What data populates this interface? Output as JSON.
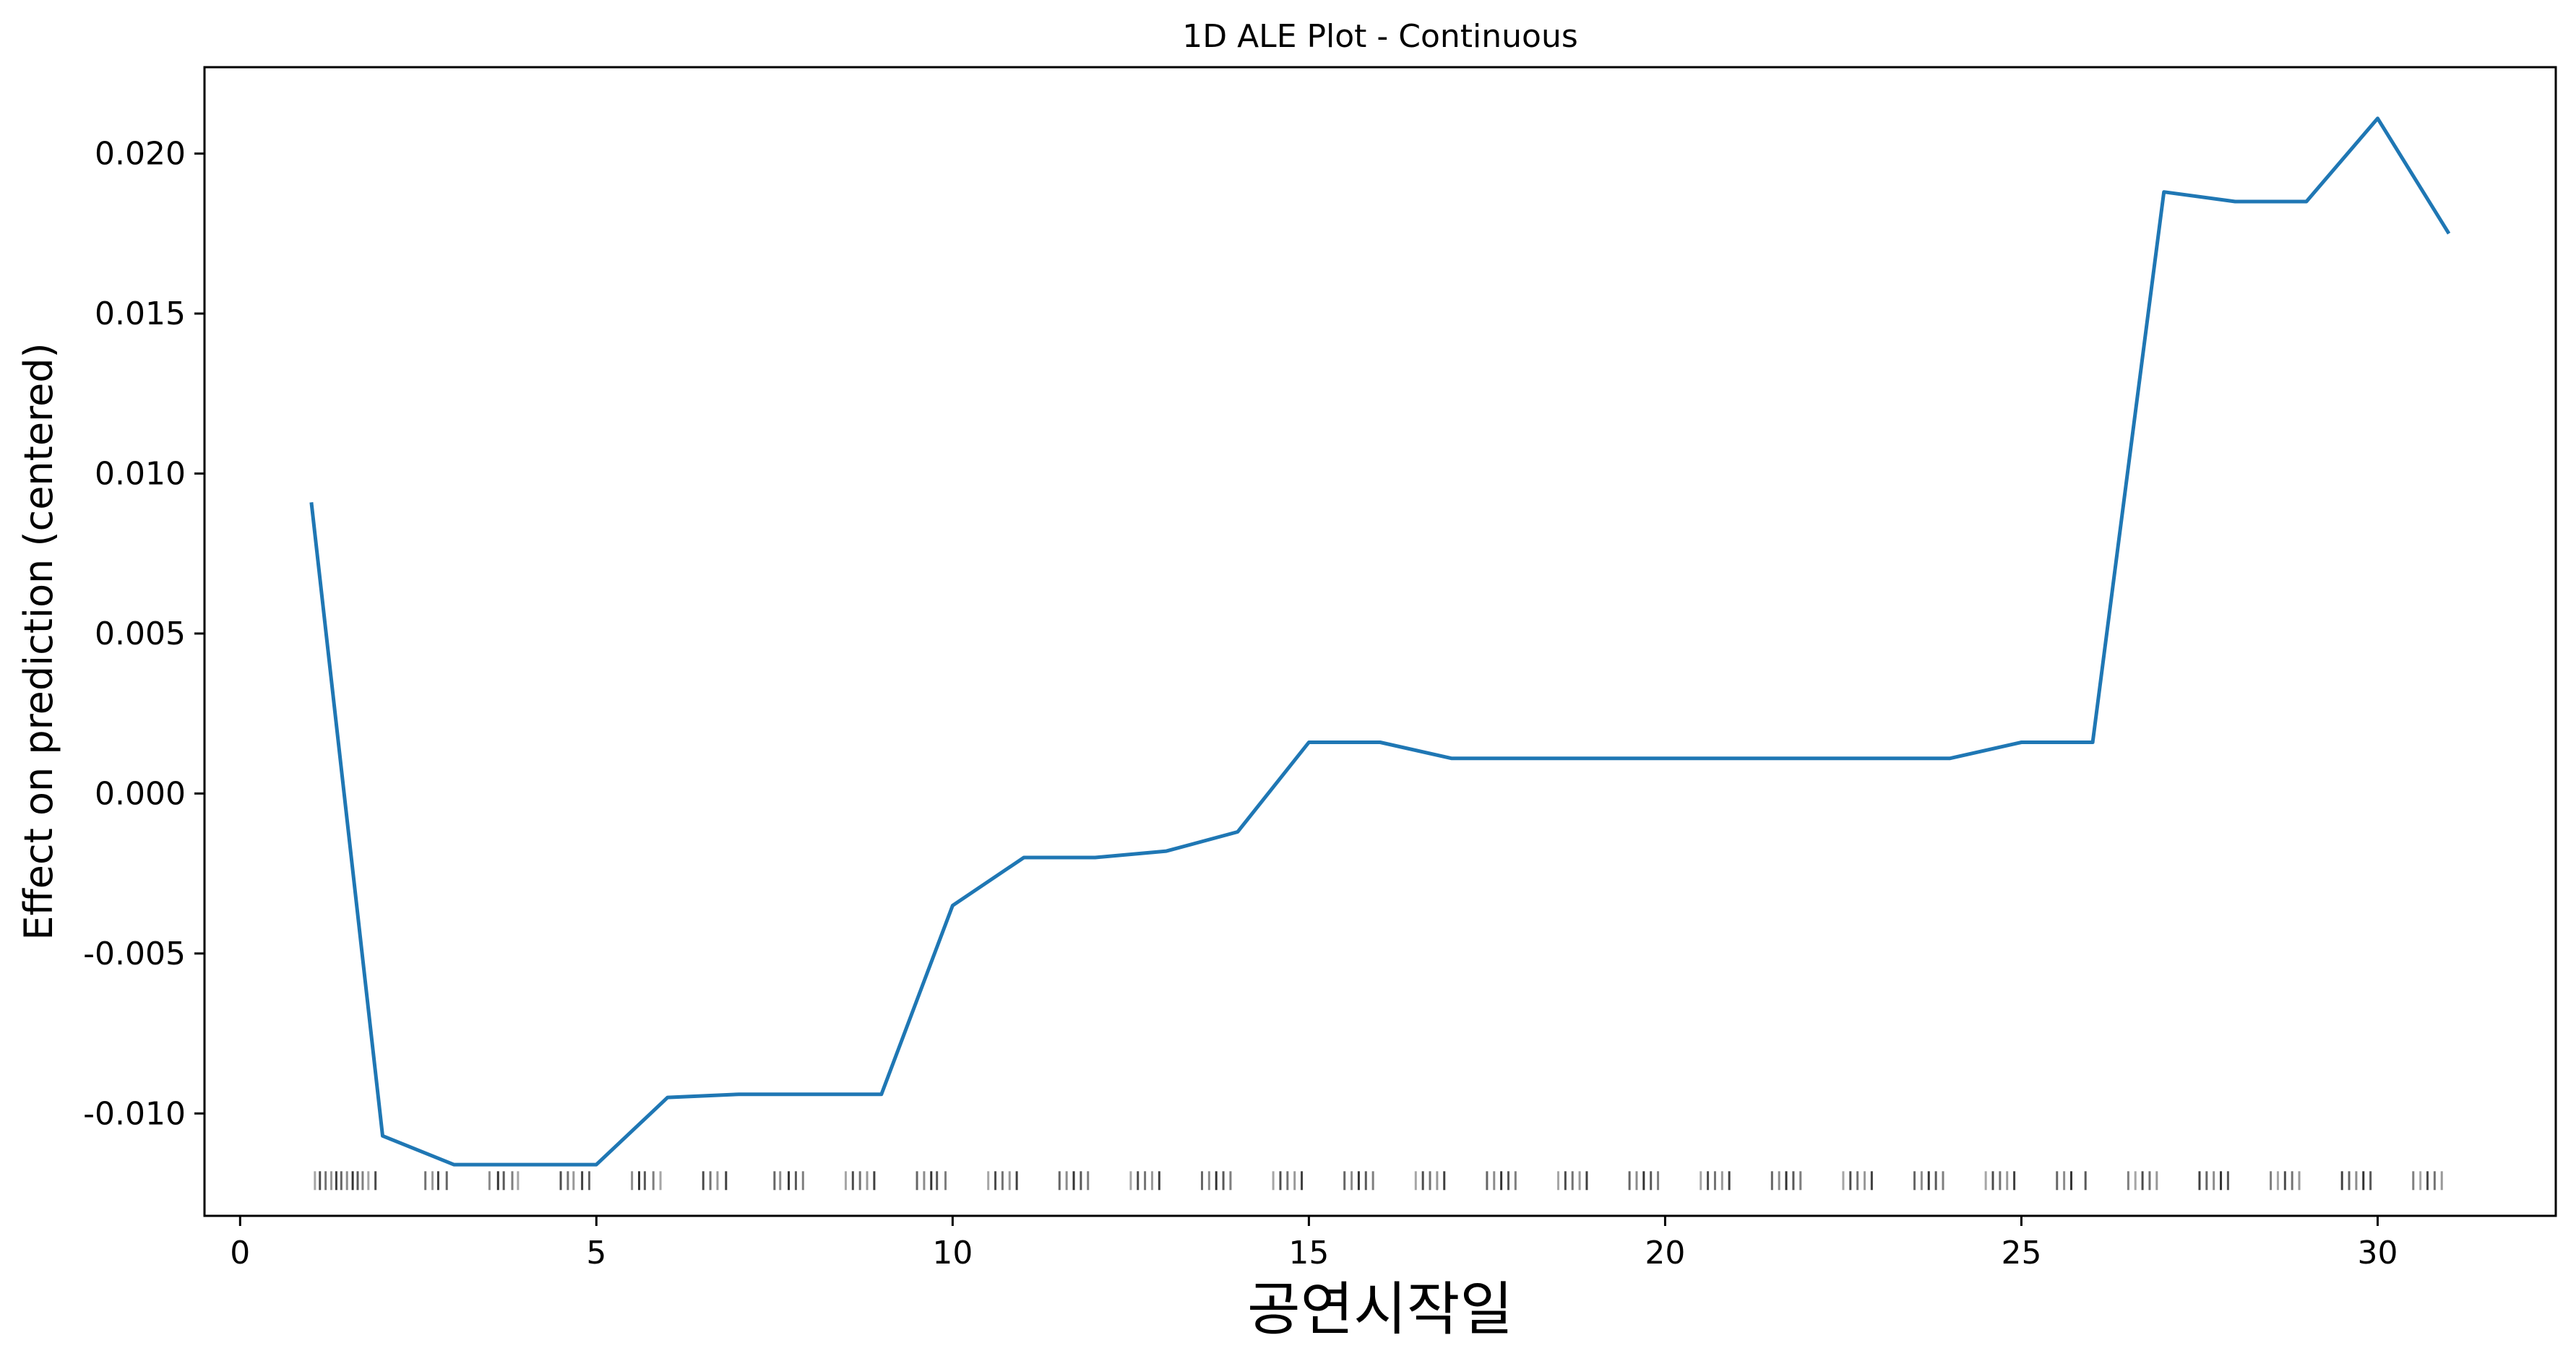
{
  "chart_data": {
    "type": "line",
    "title": "1D ALE Plot - Continuous",
    "xlabel": "공연시작일",
    "ylabel": "Effect on prediction (centered)",
    "xlim": [
      -0.5,
      32.5
    ],
    "ylim": [
      -0.0132,
      0.0227
    ],
    "x_ticks": [
      0,
      5,
      10,
      15,
      20,
      25,
      30
    ],
    "x_tick_labels": [
      "0",
      "5",
      "10",
      "15",
      "20",
      "25",
      "30"
    ],
    "y_ticks": [
      -0.01,
      -0.005,
      0.0,
      0.005,
      0.01,
      0.015,
      0.02
    ],
    "y_tick_labels": [
      "-0.010",
      "-0.005",
      "0.000",
      "0.005",
      "0.010",
      "0.015",
      "0.020"
    ],
    "grid": false,
    "line_color": "#1f77b4",
    "series": [
      {
        "x": [
          1,
          2,
          3,
          4,
          5,
          6,
          7,
          8,
          9,
          10,
          11,
          12,
          13,
          14,
          15,
          16,
          17,
          18,
          19,
          20,
          21,
          22,
          23,
          24,
          25,
          26,
          27,
          28,
          29,
          30,
          31
        ],
        "y": [
          0.0091,
          -0.0107,
          -0.0116,
          -0.0116,
          -0.0116,
          -0.0095,
          -0.0094,
          -0.0094,
          -0.0094,
          -0.0035,
          -0.002,
          -0.002,
          -0.0018,
          -0.0012,
          0.0016,
          0.0016,
          0.0011,
          0.0011,
          0.0011,
          0.0011,
          0.0011,
          0.0011,
          0.0011,
          0.0011,
          0.0016,
          0.0016,
          0.0188,
          0.0185,
          0.0185,
          0.0211,
          0.0175
        ]
      }
    ],
    "rug": {
      "y": -0.0121,
      "x": [
        1.05,
        1.12,
        1.2,
        1.28,
        1.35,
        1.42,
        1.5,
        1.58,
        1.65,
        1.72,
        1.8,
        1.9,
        2.6,
        2.7,
        2.78,
        2.9,
        3.5,
        3.62,
        3.7,
        3.82,
        3.9,
        4.5,
        4.6,
        4.68,
        4.8,
        4.9,
        5.5,
        5.6,
        5.68,
        5.8,
        5.9,
        6.5,
        6.6,
        6.7,
        6.82,
        7.5,
        7.58,
        7.7,
        7.8,
        7.9,
        8.5,
        8.6,
        8.7,
        8.8,
        8.9,
        9.5,
        9.6,
        9.7,
        9.78,
        9.9,
        10.5,
        10.6,
        10.7,
        10.8,
        10.9,
        11.5,
        11.6,
        11.7,
        11.8,
        11.9,
        12.5,
        12.6,
        12.7,
        12.8,
        12.9,
        13.5,
        13.6,
        13.7,
        13.8,
        13.9,
        14.5,
        14.6,
        14.7,
        14.8,
        14.9,
        15.5,
        15.6,
        15.7,
        15.8,
        15.9,
        16.5,
        16.6,
        16.7,
        16.8,
        16.9,
        17.5,
        17.6,
        17.7,
        17.8,
        17.9,
        18.5,
        18.6,
        18.7,
        18.8,
        18.9,
        19.5,
        19.6,
        19.7,
        19.8,
        19.9,
        20.5,
        20.6,
        20.7,
        20.8,
        20.9,
        21.5,
        21.6,
        21.7,
        21.8,
        21.9,
        22.5,
        22.6,
        22.7,
        22.8,
        22.9,
        23.5,
        23.6,
        23.7,
        23.8,
        23.9,
        24.5,
        24.6,
        24.7,
        24.8,
        24.9,
        25.5,
        25.6,
        25.7,
        25.9,
        26.5,
        26.6,
        26.7,
        26.8,
        26.9,
        27.5,
        27.6,
        27.7,
        27.8,
        27.9,
        28.5,
        28.6,
        28.7,
        28.8,
        28.9,
        29.5,
        29.6,
        29.7,
        29.8,
        29.9,
        30.5,
        30.6,
        30.7,
        30.8,
        30.9
      ]
    }
  }
}
